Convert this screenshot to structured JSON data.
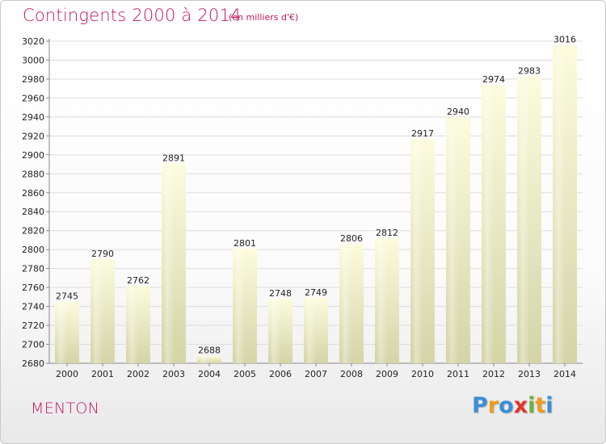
{
  "header": {
    "title": "Contingents 2000 à 2014",
    "subtitle": "(en milliers d'€)"
  },
  "footer": {
    "location": "MENTON",
    "brand_letters": [
      {
        "char": "P",
        "color": "#3a8fd6"
      },
      {
        "char": "r",
        "color": "#f29a1f"
      },
      {
        "char": "o",
        "color": "#3a8fd6"
      },
      {
        "char": "x",
        "color": "#e2352a"
      },
      {
        "char": "i",
        "color": "#6db33f"
      },
      {
        "char": "t",
        "color": "#f29a1f"
      },
      {
        "char": "i",
        "color": "#3a8fd6"
      }
    ]
  },
  "colors": {
    "accent": "#c8185a",
    "bar_top": "#fcfcde",
    "bar_bottom": "#d4d4a8",
    "grid": "#dddddd"
  },
  "chart_data": {
    "type": "bar",
    "title": "Contingents 2000 à 2014",
    "subtitle": "(en milliers d'€)",
    "categories": [
      "2000",
      "2001",
      "2002",
      "2003",
      "2004",
      "2005",
      "2006",
      "2007",
      "2008",
      "2009",
      "2010",
      "2011",
      "2012",
      "2013",
      "2014"
    ],
    "values": [
      2745,
      2790,
      2762,
      2891,
      2688,
      2801,
      2748,
      2749,
      2806,
      2812,
      2917,
      2940,
      2974,
      2983,
      3016
    ],
    "xlabel": "",
    "ylabel": "",
    "ylim": [
      2680,
      3020
    ],
    "yticks": [
      2680,
      2700,
      2720,
      2740,
      2760,
      2780,
      2800,
      2820,
      2840,
      2860,
      2880,
      2900,
      2920,
      2940,
      2960,
      2980,
      3000,
      3020
    ],
    "grid": true,
    "data_labels": true
  }
}
